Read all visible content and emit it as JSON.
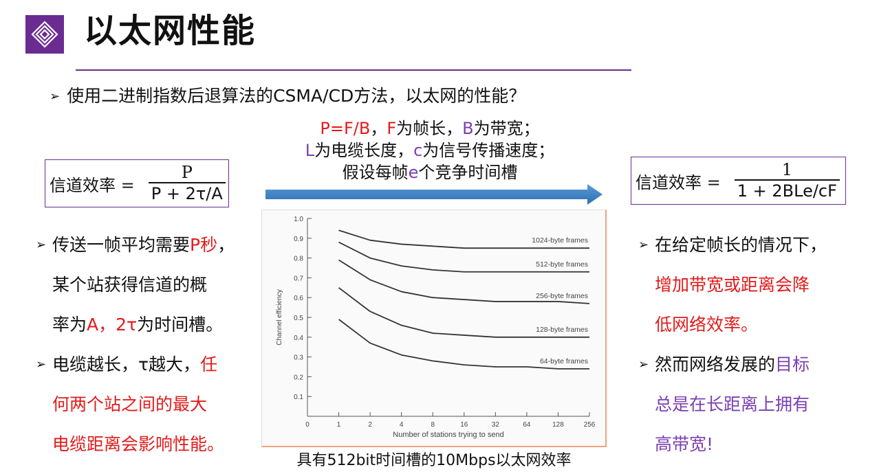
{
  "header": {
    "title": "以太网性能",
    "logo_icon": "layered-diamond-icon",
    "accent_color": "#6a2c91"
  },
  "question": "使用二进制指数后退算法的CSMA/CD方法，以太网的性能？",
  "assumptions": {
    "line1": {
      "p": "P=F/B",
      "sep": "，",
      "f": "F",
      "f_text": "为帧长，",
      "b": "B",
      "b_text": "为带宽；"
    },
    "line2": {
      "l": "L",
      "l_text": "为电缆长度，",
      "c": "c",
      "c_text": "为信号传播速度；"
    },
    "line3": {
      "pre": "假设每帧",
      "e": "e",
      "post": "个竞争时间槽"
    }
  },
  "formula_left": {
    "lhs": "信道效率 =",
    "numerator": "P",
    "denominator": "P + 2τ/A"
  },
  "formula_right": {
    "lhs": "信道效率 =",
    "numerator": "1",
    "denominator": "1 + 2BLe/cF"
  },
  "left_bullets": {
    "b1_a": "传送一帧平均需要",
    "b1_red": "P秒",
    "b1_b": "，",
    "b1_line2": "某个站获得信道的概",
    "b1_line3_a": "率为",
    "b1_line3_red": "A，2τ",
    "b1_line3_b": "为时间槽。",
    "b2_a": "电缆越长，τ越大，",
    "b2_red1": "任",
    "b2_red2": "何两个站之间的最大",
    "b2_red3": "电缆距离会影响性能。"
  },
  "right_bullets": {
    "b1": "在给定帧长的情况下，",
    "b1_red1": "增加带宽或距离会降",
    "b1_red2": "低网络效率。",
    "b2_a": "然而网络发展的",
    "b2_purple1": "目标",
    "b2_purple2": "总是在长距离上拥有",
    "b2_purple3": "高带宽!"
  },
  "caption": "具有512bit时间槽的10Mbps以太网效率",
  "chart_data": {
    "type": "line",
    "xlabel": "Number of stations trying to send",
    "ylabel": "Channel efficiency",
    "x_tick_labels": [
      "0",
      "1",
      "2",
      "4",
      "8",
      "16",
      "32",
      "64",
      "128",
      "256"
    ],
    "y_tick_labels": [
      "0.1",
      "0.2",
      "0.3",
      "0.4",
      "0.5",
      "0.6",
      "0.7",
      "0.8",
      "0.9",
      "1.0"
    ],
    "ylim": [
      0,
      1.0
    ],
    "series": [
      {
        "name": "1024-byte frames",
        "values": [
          0.94,
          0.89,
          0.87,
          0.86,
          0.85,
          0.85,
          0.85,
          0.85,
          0.85
        ]
      },
      {
        "name": "512-byte frames",
        "values": [
          0.88,
          0.8,
          0.76,
          0.74,
          0.73,
          0.73,
          0.73,
          0.73,
          0.73
        ]
      },
      {
        "name": "256-byte frames",
        "values": [
          0.79,
          0.69,
          0.63,
          0.6,
          0.59,
          0.58,
          0.58,
          0.58,
          0.57
        ]
      },
      {
        "name": "128-byte frames",
        "values": [
          0.65,
          0.53,
          0.46,
          0.42,
          0.41,
          0.4,
          0.4,
          0.4,
          0.4
        ]
      },
      {
        "name": "64-byte frames",
        "values": [
          0.49,
          0.37,
          0.31,
          0.28,
          0.26,
          0.25,
          0.25,
          0.24,
          0.24
        ]
      }
    ]
  }
}
